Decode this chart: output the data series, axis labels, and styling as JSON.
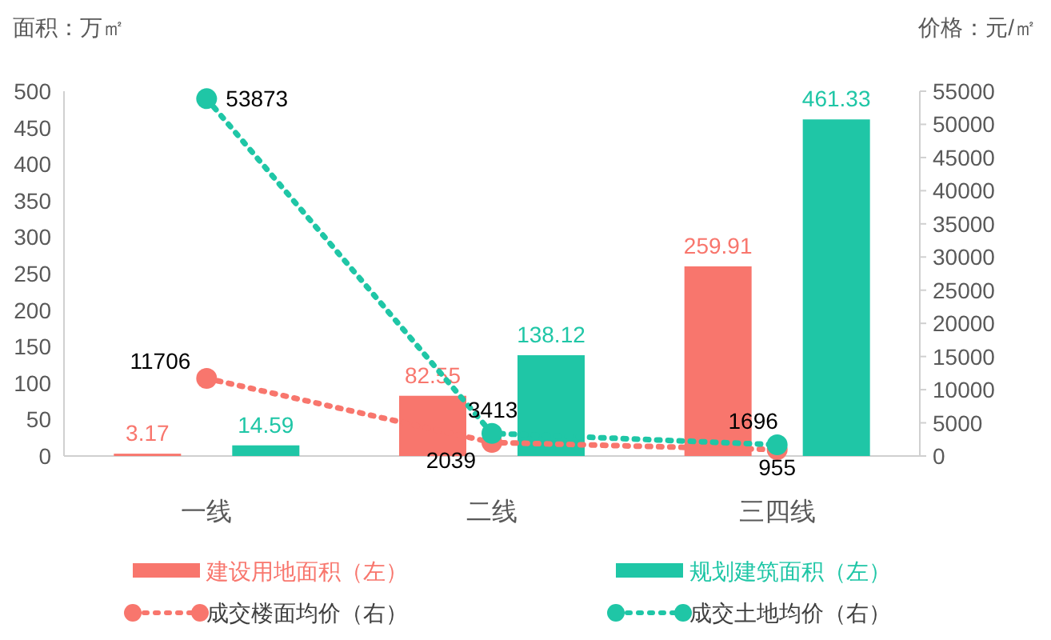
{
  "chart_data": {
    "type": "bar",
    "ylabel": "面积：万㎡",
    "y2label": "价格：元/㎡",
    "categories": [
      "一线",
      "二线",
      "三四线"
    ],
    "series": [
      {
        "name": "建设用地面积（左）",
        "color": "#f8766d",
        "values": [
          3.17,
          82.55,
          259.91
        ]
      },
      {
        "name": "规划建筑面积（左）",
        "color": "#1fc6a6",
        "values": [
          14.59,
          138.12,
          461.33
        ]
      },
      {
        "name": "成交楼面均价（右）",
        "type": "line",
        "axis": "y2",
        "marker": "circle",
        "line_style": "dotted",
        "color": "#f8766d",
        "values": [
          11706,
          2039,
          955
        ]
      },
      {
        "name": "成交土地均价（右）",
        "type": "line",
        "axis": "y2",
        "marker": "circle",
        "line_style": "dotted",
        "color": "#1fc6a6",
        "values": [
          53873,
          3413,
          1696
        ]
      }
    ],
    "ylim": [
      0,
      500
    ],
    "yticks": [
      0,
      50,
      100,
      150,
      200,
      250,
      300,
      350,
      400,
      450,
      500
    ],
    "y2lim": [
      0,
      55000
    ],
    "y2ticks": [
      0,
      5000,
      10000,
      15000,
      20000,
      25000,
      30000,
      35000,
      40000,
      45000,
      50000,
      55000
    ],
    "data_labels": true,
    "legend": "bottom",
    "grid": false
  }
}
